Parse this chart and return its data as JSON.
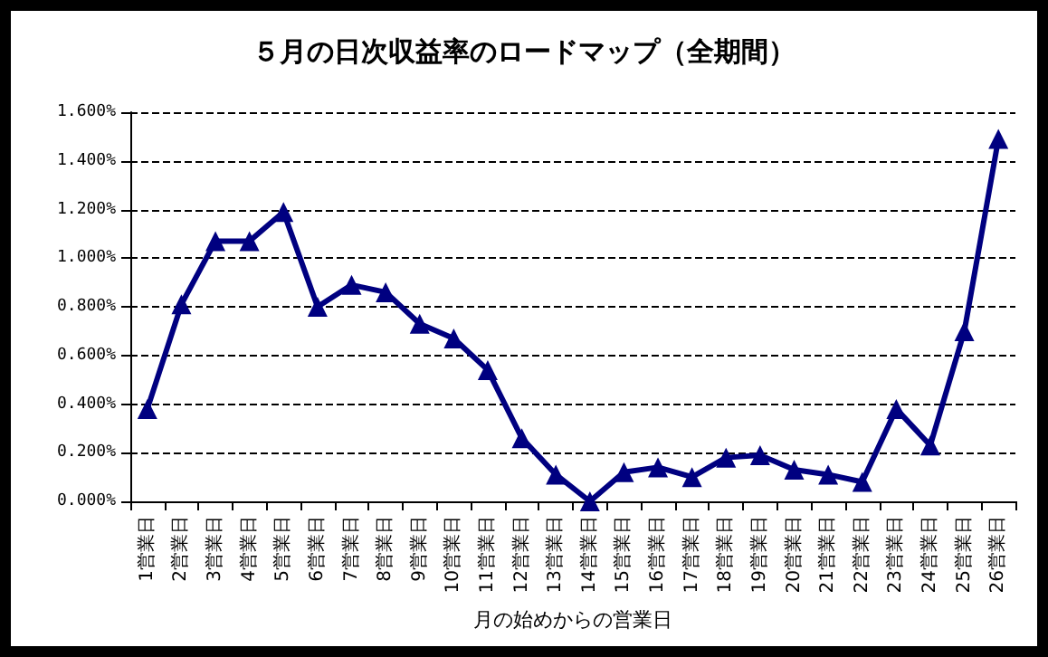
{
  "chart_data": {
    "type": "line",
    "title": "５月の日次収益率のロードマップ（全期間）",
    "xlabel": "月の始めからの営業日",
    "categories": [
      "1営業日",
      "2営業日",
      "3営業日",
      "4営業日",
      "5営業日",
      "6営業日",
      "7営業日",
      "8営業日",
      "9営業日",
      "10営業日",
      "11営業日",
      "12営業日",
      "13営業日",
      "14営業日",
      "15営業日",
      "16営業日",
      "17営業日",
      "18営業日",
      "19営業日",
      "20営業日",
      "21営業日",
      "22営業日",
      "23営業日",
      "24営業日",
      "25営業日",
      "26営業日"
    ],
    "series": [
      {
        "color": "#000080",
        "values": [
          0.38,
          0.81,
          1.07,
          1.07,
          1.19,
          0.8,
          0.89,
          0.86,
          0.73,
          0.67,
          0.54,
          0.26,
          0.11,
          0.0,
          0.12,
          0.14,
          0.1,
          0.18,
          0.19,
          0.13,
          0.11,
          0.08,
          0.38,
          0.23,
          0.7,
          1.49
        ]
      }
    ],
    "ylim": [
      0,
      1.6
    ],
    "yticks": [
      {
        "value": 0,
        "label": "0.000%"
      },
      {
        "value": 0.2,
        "label": "0.200%"
      },
      {
        "value": 0.4,
        "label": "0.400%"
      },
      {
        "value": 0.6,
        "label": "0.600%"
      },
      {
        "value": 0.8,
        "label": "0.800%"
      },
      {
        "value": 1.0,
        "label": "1.000%"
      },
      {
        "value": 1.2,
        "label": "1.200%"
      },
      {
        "value": 1.4,
        "label": "1.400%"
      },
      {
        "value": 1.6,
        "label": "1.600%"
      }
    ],
    "grid": "y",
    "marker": "triangle",
    "line_style": "solid"
  }
}
